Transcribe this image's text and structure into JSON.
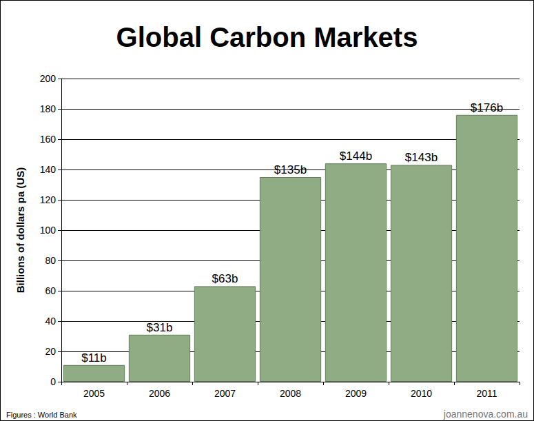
{
  "chart_data": {
    "type": "bar",
    "title": "Global Carbon Markets",
    "y_label": "Billions of dollars pa (US)",
    "categories": [
      "2005",
      "2006",
      "2007",
      "2008",
      "2009",
      "2010",
      "2011"
    ],
    "values": [
      11,
      31,
      63,
      135,
      144,
      143,
      176
    ],
    "value_labels": [
      "$11b",
      "$31b",
      "$63b",
      "$135b",
      "$144b",
      "$143b",
      "$176b"
    ],
    "data_labels": true,
    "color": "#8fac84",
    "ylim": [
      0,
      200
    ],
    "yticks": [
      0,
      20,
      40,
      60,
      80,
      100,
      120,
      140,
      160,
      180,
      200
    ],
    "grid": true,
    "annotations": [
      "Figures : World Bank",
      "joannenova.com.au"
    ]
  }
}
